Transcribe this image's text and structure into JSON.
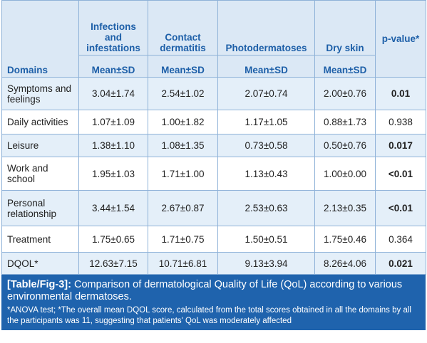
{
  "table": {
    "header": {
      "domain": "Domains",
      "columns": [
        "Infections and infestations",
        "Contact dermatitis",
        "Photodermatoses",
        "Dry skin"
      ],
      "p": "p-value*",
      "sub": [
        "Mean±SD",
        "Mean±SD",
        "Mean±SD",
        "Mean±SD"
      ]
    },
    "rows": [
      {
        "domain": "Symptoms and feelings",
        "values": [
          "3.04±1.74",
          "2.54±1.02",
          "2.07±0.74",
          "2.00±0.76"
        ],
        "p": "0.01",
        "p_bold": true
      },
      {
        "domain": "Daily activities",
        "values": [
          "1.07±1.09",
          "1.00±1.82",
          "1.17±1.05",
          "0.88±1.73"
        ],
        "p": "0.938",
        "p_bold": false
      },
      {
        "domain": "Leisure",
        "values": [
          "1.38±1.10",
          "1.08±1.35",
          "0.73±0.58",
          "0.50±0.76"
        ],
        "p": "0.017",
        "p_bold": true
      },
      {
        "domain": "Work and school",
        "values": [
          "1.95±1.03",
          "1.71±1.00",
          "1.13±0.43",
          "1.00±0.00"
        ],
        "p": "<0.01",
        "p_bold": true
      },
      {
        "domain": "Personal relationship",
        "values": [
          "3.44±1.54",
          "2.67±0.87",
          "2.53±0.63",
          "2.13±0.35"
        ],
        "p": "<0.01",
        "p_bold": true
      },
      {
        "domain": "Treatment",
        "values": [
          "1.75±0.65",
          "1.71±0.75",
          "1.50±0.51",
          "1.75±0.46"
        ],
        "p": "0.364",
        "p_bold": false
      },
      {
        "domain": "DQOL*",
        "values": [
          "12.63±7.15",
          "10.71±6.81",
          "9.13±3.94",
          "8.26±4.06"
        ],
        "p": "0.021",
        "p_bold": true
      }
    ]
  },
  "caption": {
    "label": "[Table/Fig-3]:",
    "text": "Comparison of dermatological Quality of Life (QoL) according to various environmental dermatoses.",
    "note": "*ANOVA test; *The overall mean DQOL score, calculated from the total scores obtained in all the domains by all the participants was 11, suggesting that patients' QoL was moderately affected"
  }
}
